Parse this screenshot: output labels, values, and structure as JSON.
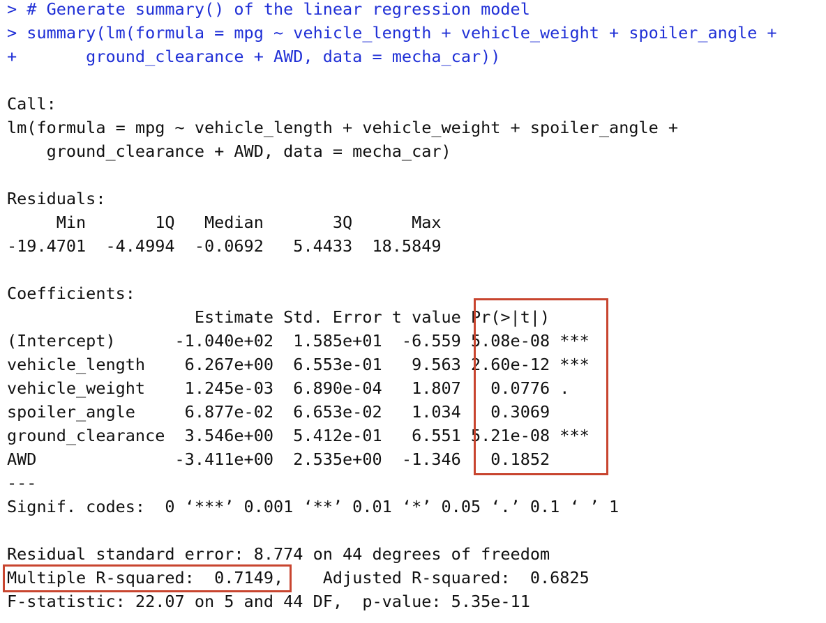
{
  "console": {
    "lines": [
      {
        "text": "> # Generate summary() of the linear regression model",
        "kind": "cmd"
      },
      {
        "text": "> summary(lm(formula = mpg ~ vehicle_length + vehicle_weight + spoiler_angle +",
        "kind": "cmd"
      },
      {
        "text": "+       ground_clearance + AWD, data = mecha_car))",
        "kind": "cmd"
      },
      {
        "text": "",
        "kind": "out"
      },
      {
        "text": "Call:",
        "kind": "out"
      },
      {
        "text": "lm(formula = mpg ~ vehicle_length + vehicle_weight + spoiler_angle + ",
        "kind": "out"
      },
      {
        "text": "    ground_clearance + AWD, data = mecha_car)",
        "kind": "out"
      },
      {
        "text": "",
        "kind": "out"
      },
      {
        "text": "Residuals:",
        "kind": "out"
      },
      {
        "text": "     Min       1Q   Median       3Q      Max ",
        "kind": "out"
      },
      {
        "text": "-19.4701  -4.4994  -0.0692   5.4433  18.5849 ",
        "kind": "out"
      },
      {
        "text": "",
        "kind": "out"
      },
      {
        "text": "Coefficients:",
        "kind": "out"
      },
      {
        "text": "                   Estimate Std. Error t value Pr(>|t|)    ",
        "kind": "out"
      },
      {
        "text": "(Intercept)      -1.040e+02  1.585e+01  -6.559 5.08e-08 ***",
        "kind": "out"
      },
      {
        "text": "vehicle_length    6.267e+00  6.553e-01   9.563 2.60e-12 ***",
        "kind": "out"
      },
      {
        "text": "vehicle_weight    1.245e-03  6.890e-04   1.807   0.0776 .  ",
        "kind": "out"
      },
      {
        "text": "spoiler_angle     6.877e-02  6.653e-02   1.034   0.3069    ",
        "kind": "out"
      },
      {
        "text": "ground_clearance  3.546e+00  5.412e-01   6.551 5.21e-08 ***",
        "kind": "out"
      },
      {
        "text": "AWD              -3.411e+00  2.535e+00  -1.346   0.1852    ",
        "kind": "out"
      },
      {
        "text": "---",
        "kind": "out"
      },
      {
        "text": "Signif. codes:  0 ‘***’ 0.001 ‘**’ 0.01 ‘*’ 0.05 ‘.’ 0.1 ‘ ’ 1",
        "kind": "out"
      },
      {
        "text": "",
        "kind": "out"
      },
      {
        "text": "Residual standard error: 8.774 on 44 degrees of freedom",
        "kind": "out"
      },
      {
        "text": "Multiple R-squared:  0.7149,\tAdjusted R-squared:  0.6825 ",
        "kind": "out"
      },
      {
        "text": "F-statistic: 22.07 on 5 and 44 DF,  p-value: 5.35e-11",
        "kind": "out"
      }
    ]
  },
  "colors": {
    "command": "#1f2fd6",
    "output": "#111111",
    "highlight_box": "#c8452f",
    "background": "#ffffff"
  }
}
